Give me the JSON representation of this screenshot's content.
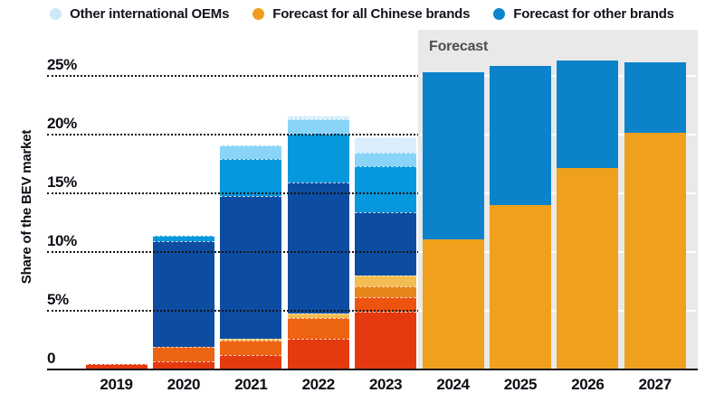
{
  "legend": {
    "items": [
      {
        "label": "Other international OEMs",
        "color": "#cfe8f8"
      },
      {
        "label": "Forecast for all Chinese brands",
        "color": "#f09d1f"
      },
      {
        "label": "Forecast for other brands",
        "color": "#0d85cc"
      }
    ]
  },
  "forecast_panel": {
    "label": "Forecast",
    "background": "#e9e9e9",
    "label_color": "#4d4d4d",
    "covers_years": [
      "2024",
      "2025",
      "2026",
      "2027"
    ]
  },
  "chart_data": {
    "type": "bar",
    "stacked": true,
    "title": "",
    "xlabel": "",
    "ylabel": "Share of the BEV market",
    "ylim": [
      0,
      27
    ],
    "grid": "dotted horizontal, white inside forecast panel",
    "legend_position": "top",
    "yticks": [
      {
        "value": 25,
        "label": "25%"
      },
      {
        "value": 20,
        "label": "20%"
      },
      {
        "value": 15,
        "label": "15%"
      },
      {
        "value": 10,
        "label": "10%"
      },
      {
        "value": 5,
        "label": "5%"
      },
      {
        "value": 0,
        "label": "0"
      }
    ],
    "categories": [
      "2019",
      "2020",
      "2021",
      "2022",
      "2023",
      "2024",
      "2025",
      "2026",
      "2027"
    ],
    "bars": [
      {
        "year": "2019",
        "forecast": false,
        "total": 0.5,
        "segments": [
          {
            "name": "red",
            "color": "#e53a0f",
            "value": 0.5
          }
        ]
      },
      {
        "year": "2020",
        "forecast": false,
        "total": 11.4,
        "segments": [
          {
            "name": "red",
            "color": "#e53a0f",
            "value": 0.7
          },
          {
            "name": "orange",
            "color": "#ed6412",
            "value": 1.2
          },
          {
            "name": "dark-blue",
            "color": "#0c4da2",
            "value": 9.0
          },
          {
            "name": "medium-blue",
            "color": "#0598dc",
            "value": 0.5
          }
        ]
      },
      {
        "year": "2021",
        "forecast": false,
        "total": 19.1,
        "segments": [
          {
            "name": "red",
            "color": "#e53a0f",
            "value": 1.2
          },
          {
            "name": "orange",
            "color": "#ed6412",
            "value": 1.25
          },
          {
            "name": "tan",
            "color": "#f3bd54",
            "value": 0.2
          },
          {
            "name": "dark-blue",
            "color": "#0c4da2",
            "value": 12.1
          },
          {
            "name": "medium-blue",
            "color": "#0598dc",
            "value": 3.2
          },
          {
            "name": "light-blue",
            "color": "#8ad4f7",
            "value": 1.15
          }
        ]
      },
      {
        "year": "2022",
        "forecast": false,
        "total": 21.6,
        "segments": [
          {
            "name": "red",
            "color": "#e53a0f",
            "value": 2.6
          },
          {
            "name": "orange",
            "color": "#ed6412",
            "value": 1.8
          },
          {
            "name": "tan",
            "color": "#f3bd54",
            "value": 0.4
          },
          {
            "name": "dark-blue",
            "color": "#0c4da2",
            "value": 11.1
          },
          {
            "name": "medium-blue",
            "color": "#0598dc",
            "value": 4.2
          },
          {
            "name": "light-blue",
            "color": "#8ad4f7",
            "value": 1.2
          },
          {
            "name": "other-international-oems",
            "color": "#daeefb",
            "value": 0.3
          }
        ]
      },
      {
        "year": "2023",
        "forecast": false,
        "total": 19.8,
        "segments": [
          {
            "name": "red",
            "color": "#e53a0f",
            "value": 4.95
          },
          {
            "name": "red-orange",
            "color": "#ee5410",
            "value": 1.2
          },
          {
            "name": "orange",
            "color": "#e8861c",
            "value": 0.95
          },
          {
            "name": "tan",
            "color": "#f3bd54",
            "value": 0.9
          },
          {
            "name": "dark-blue",
            "color": "#0c4da2",
            "value": 5.4
          },
          {
            "name": "medium-blue",
            "color": "#0598dc",
            "value": 3.9
          },
          {
            "name": "light-blue",
            "color": "#8ad4f7",
            "value": 1.2
          },
          {
            "name": "other-international-oems",
            "color": "#daeefb",
            "value": 1.3
          }
        ]
      },
      {
        "year": "2024",
        "forecast": true,
        "total": 25.3,
        "segments": [
          {
            "name": "forecast-all-chinese-brands",
            "color": "#efa11d",
            "value": 11.1
          },
          {
            "name": "forecast-other-brands",
            "color": "#0b83cb",
            "value": 14.2
          }
        ]
      },
      {
        "year": "2025",
        "forecast": true,
        "total": 25.9,
        "segments": [
          {
            "name": "forecast-all-chinese-brands",
            "color": "#efa11d",
            "value": 14.0
          },
          {
            "name": "forecast-other-brands",
            "color": "#0b83cb",
            "value": 11.9
          }
        ]
      },
      {
        "year": "2026",
        "forecast": true,
        "total": 26.3,
        "segments": [
          {
            "name": "forecast-all-chinese-brands",
            "color": "#efa11d",
            "value": 17.2
          },
          {
            "name": "forecast-other-brands",
            "color": "#0b83cb",
            "value": 9.1
          }
        ]
      },
      {
        "year": "2027",
        "forecast": true,
        "total": 26.2,
        "segments": [
          {
            "name": "forecast-all-chinese-brands",
            "color": "#efa11d",
            "value": 20.2
          },
          {
            "name": "forecast-other-brands",
            "color": "#0b83cb",
            "value": 6.0
          }
        ]
      }
    ]
  }
}
